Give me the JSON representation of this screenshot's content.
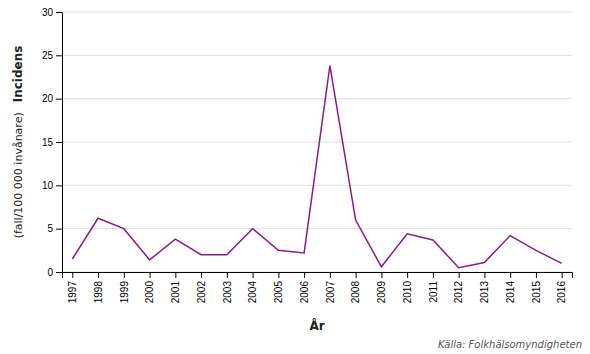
{
  "chart_data": {
    "type": "line",
    "x": [
      1997,
      1998,
      1999,
      2000,
      2001,
      2002,
      2003,
      2004,
      2005,
      2006,
      2007,
      2008,
      2009,
      2010,
      2011,
      2012,
      2013,
      2014,
      2015,
      2016
    ],
    "values": [
      1.5,
      6.2,
      5.0,
      1.4,
      3.8,
      2.0,
      2.0,
      5.0,
      2.5,
      2.2,
      23.8,
      6.0,
      0.6,
      4.4,
      3.7,
      0.5,
      1.1,
      4.2,
      2.5,
      1.0
    ],
    "color": "#8B1A8B",
    "xlabel": "År",
    "ylabel": [
      "Incidens",
      "(fall/100 000 invånare)"
    ],
    "source": "Källa: Folkhälsomyndigheten",
    "xlim": [
      1996.6,
      2016.4
    ],
    "xticks": [
      1997,
      1998,
      1999,
      2000,
      2001,
      2002,
      2003,
      2004,
      2005,
      2006,
      2007,
      2008,
      2009,
      2010,
      2011,
      2012,
      2013,
      2014,
      2015,
      2016
    ],
    "ylim": [
      0,
      30
    ],
    "yticks": [
      0,
      5,
      10,
      15,
      20,
      25,
      30
    ],
    "grid": "y"
  }
}
